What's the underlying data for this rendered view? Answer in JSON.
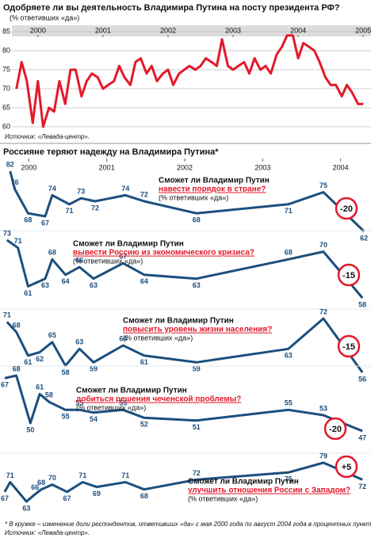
{
  "chart_data": [
    {
      "type": "line",
      "title": "Одобряете ли вы деятельность Владимира Путина на посту президента РФ?",
      "subtitle": "(% ответивших «да»)",
      "source": "Источник: «Левада-центр».",
      "color": "#e3192b",
      "xlim": [
        1999.6,
        2005.12
      ],
      "xticks": [
        2000,
        2001,
        2002,
        2003,
        2004,
        2005
      ],
      "ylim": [
        60,
        85
      ],
      "yticks": [
        60,
        65,
        70,
        75,
        80,
        85
      ],
      "grid": true,
      "x": [
        1999.67,
        1999.75,
        1999.83,
        1999.92,
        2000.0,
        2000.08,
        2000.17,
        2000.25,
        2000.33,
        2000.42,
        2000.5,
        2000.58,
        2000.67,
        2000.75,
        2000.83,
        2000.92,
        2001.0,
        2001.08,
        2001.17,
        2001.25,
        2001.33,
        2001.42,
        2001.5,
        2001.58,
        2001.67,
        2001.75,
        2001.83,
        2001.92,
        2002.0,
        2002.08,
        2002.17,
        2002.25,
        2002.33,
        2002.42,
        2002.5,
        2002.58,
        2002.67,
        2002.75,
        2002.83,
        2002.92,
        2003.0,
        2003.08,
        2003.17,
        2003.25,
        2003.33,
        2003.42,
        2003.5,
        2003.58,
        2003.67,
        2003.75,
        2003.83,
        2003.92,
        2004.0,
        2004.08,
        2004.17,
        2004.25,
        2004.33,
        2004.42,
        2004.5,
        2004.58,
        2004.67,
        2004.75,
        2004.83,
        2004.92,
        2005.0
      ],
      "values": [
        70,
        77,
        72,
        61,
        72,
        60,
        65,
        64,
        72,
        66,
        75,
        75,
        68,
        72,
        74,
        73,
        70,
        71,
        72,
        76,
        73,
        71,
        77,
        78,
        74,
        76,
        72,
        74,
        75,
        71,
        74,
        75,
        76,
        75,
        76,
        78,
        77,
        76,
        83,
        76,
        75,
        76,
        77,
        74,
        78,
        75,
        76,
        74,
        79,
        81,
        84,
        84,
        78,
        82,
        81,
        80,
        77,
        73,
        71,
        71,
        68,
        71,
        69,
        66,
        66
      ]
    },
    {
      "type": "line-panels",
      "title": "Россияне теряют надежду на Владимира Путина*",
      "color": "#1b4f7e",
      "xlim": [
        1999.63,
        2004.39
      ],
      "xticks": [
        2000,
        2001,
        2002,
        2003,
        2004
      ],
      "footnote": "* В кружке – изменение доли респондентов, ответивших «да» с мая 2000 года по август 2004 года в процентных пунктах.",
      "source": "Источник: «Левада-центр».",
      "series": [
        {
          "name": "Сможет ли Владимир Путин",
          "highlight": "навести порядок в стране?",
          "note": "(% ответивших «да»)",
          "ylim": [
            62,
            82
          ],
          "x": [
            1999.76,
            1999.82,
            1999.99,
            2000.21,
            2000.3,
            2000.52,
            2000.67,
            2000.85,
            2001.24,
            2001.48,
            2002.15,
            2003.33,
            2003.78,
            2004.3
          ],
          "values": [
            82,
            76,
            68,
            67,
            74,
            71,
            73,
            72,
            74,
            72,
            68,
            71,
            75,
            62
          ],
          "change": {
            "value": -20,
            "label": "-20"
          }
        },
        {
          "name": "Сможет ли Владимир Путин",
          "highlight": "вывести Россию из экономического кризиса?",
          "note": "(% ответивших «да»)",
          "ylim": [
            58,
            73
          ],
          "x": [
            1999.72,
            1999.86,
            1999.99,
            2000.21,
            2000.3,
            2000.47,
            2000.65,
            2000.83,
            2001.21,
            2001.48,
            2002.15,
            2003.33,
            2003.78,
            2004.28
          ],
          "values": [
            73,
            71,
            61,
            63,
            68,
            64,
            66,
            63,
            67,
            64,
            63,
            68,
            70,
            58
          ],
          "change": {
            "value": -15,
            "label": "-15"
          }
        },
        {
          "name": "Сможет ли Владимир Путин",
          "highlight": "повысить уровень жизни населения?",
          "note": "(% ответивших «да»)",
          "ylim": [
            56,
            72
          ],
          "x": [
            1999.72,
            1999.84,
            1999.99,
            2000.14,
            2000.3,
            2000.47,
            2000.65,
            2000.83,
            2001.21,
            2001.48,
            2002.15,
            2003.33,
            2003.78,
            2004.28
          ],
          "values": [
            71,
            68,
            61,
            62,
            65,
            58,
            63,
            59,
            64,
            61,
            59,
            63,
            72,
            56
          ],
          "change": {
            "value": -15,
            "label": "-15"
          }
        },
        {
          "name": "Сможет ли Владимир Путин",
          "highlight": "добиться решения чеченской проблемы?",
          "note": "(% ответивших «да»)",
          "ylim": [
            47,
            68
          ],
          "x": [
            1999.69,
            1999.84,
            2000.02,
            2000.14,
            2000.26,
            2000.47,
            2000.65,
            2000.83,
            2001.21,
            2001.48,
            2002.15,
            2003.33,
            2003.78,
            2004.28
          ],
          "values": [
            67,
            68,
            50,
            61,
            58,
            55,
            55,
            54,
            55,
            52,
            51,
            55,
            53,
            47
          ],
          "change": {
            "value": -20,
            "label": "-20"
          }
        },
        {
          "name": "Сможет ли Владимир Путин",
          "highlight": "улучшить отношения России с Западом?",
          "note": "(% ответивших «да»)",
          "ylim": [
            63,
            79
          ],
          "x": [
            1999.69,
            1999.76,
            1999.97,
            2000.08,
            2000.16,
            2000.3,
            2000.49,
            2000.69,
            2000.87,
            2001.24,
            2001.48,
            2002.15,
            2003.33,
            2003.78,
            2004.28
          ],
          "values": [
            67,
            71,
            63,
            66,
            68,
            70,
            67,
            71,
            69,
            71,
            68,
            72,
            75,
            79,
            72
          ],
          "change": {
            "value": 5,
            "label": "+5"
          }
        }
      ]
    }
  ]
}
